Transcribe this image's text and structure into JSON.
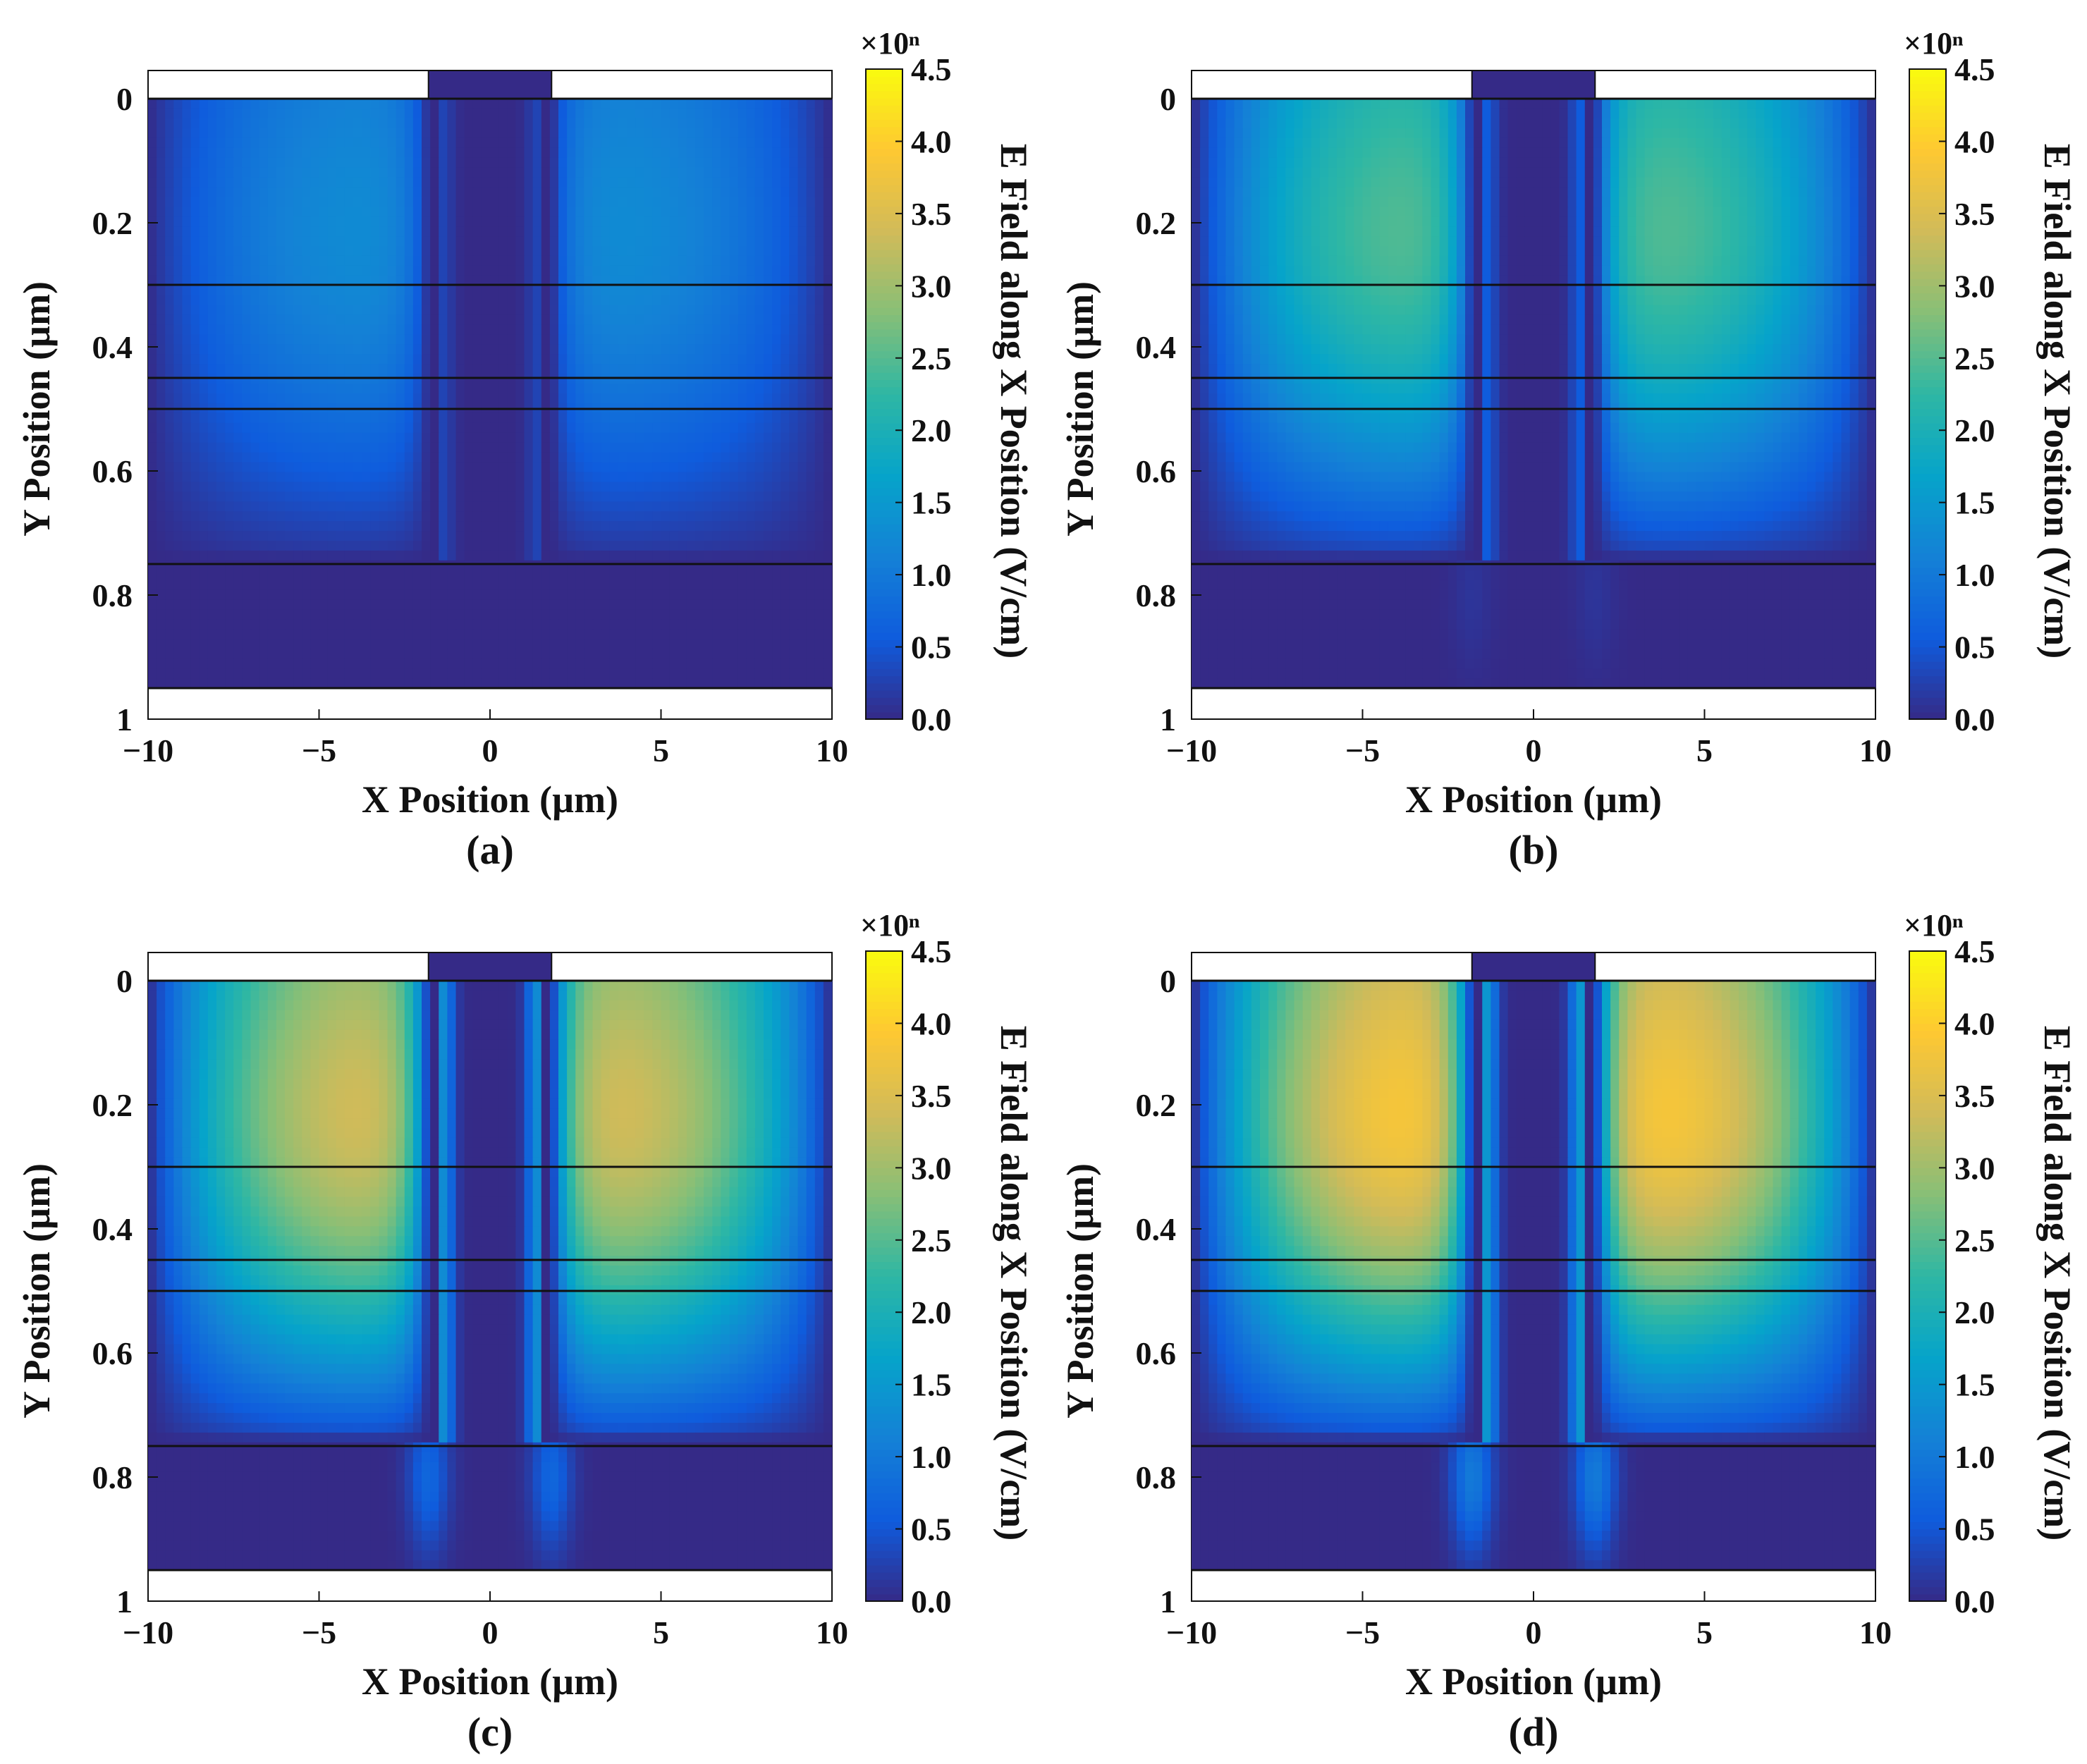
{
  "colors": {
    "colormap": [
      "#352a87",
      "#0f5cdd",
      "#1481d6",
      "#06a4ca",
      "#2eb7a4",
      "#87bf77",
      "#d1bb59",
      "#fec832",
      "#f9fb0e"
    ],
    "layer_line": "#111111",
    "empty_region": "#ffffff"
  },
  "chart_data": [
    {
      "panel_label": "(a)",
      "type": "heatmap",
      "xlabel": "X Position (µm)",
      "ylabel": "Y Position (µm)",
      "colorbar_label": "E Field along X Position (V/cm)",
      "colorbar_exponent": "×10ⁿ",
      "xlim": [
        -10,
        10
      ],
      "ylim": [
        1,
        0
      ],
      "xticks": [
        "−10",
        "−5",
        "0",
        "5",
        "10"
      ],
      "yticks": [
        "0",
        "0.2",
        "0.4",
        "0.6",
        "0.8",
        "1"
      ],
      "colorbar_range": [
        0.0,
        4.5
      ],
      "colorbar_ticks": [
        "0.0",
        "0.5",
        "1.0",
        "1.5",
        "2.0",
        "2.5",
        "3.0",
        "3.5",
        "4.0",
        "4.5"
      ],
      "layer_boundaries_y": [
        0.0,
        0.3,
        0.45,
        0.5,
        0.75,
        0.95
      ],
      "field_peak_left": 1.4,
      "field_peak_right": 1.4,
      "trench_x": [
        -1.8,
        1.8
      ]
    },
    {
      "panel_label": "(b)",
      "type": "heatmap",
      "xlabel": "X Position (µm)",
      "ylabel": "Y Position (µm)",
      "colorbar_label": "E Field along X Position (V/cm)",
      "colorbar_exponent": "×10ⁿ",
      "xlim": [
        -10,
        10
      ],
      "ylim": [
        1,
        0
      ],
      "xticks": [
        "−10",
        "−5",
        "0",
        "5",
        "10"
      ],
      "yticks": [
        "0",
        "0.2",
        "0.4",
        "0.6",
        "0.8",
        "1"
      ],
      "colorbar_range": [
        0.0,
        4.5
      ],
      "colorbar_ticks": [
        "0.0",
        "0.5",
        "1.0",
        "1.5",
        "2.0",
        "2.5",
        "3.0",
        "3.5",
        "4.0",
        "4.5"
      ],
      "layer_boundaries_y": [
        0.0,
        0.3,
        0.45,
        0.5,
        0.75,
        0.95
      ],
      "field_peak_left": 2.7,
      "field_peak_right": 2.7,
      "trench_x": [
        -1.8,
        1.8
      ]
    },
    {
      "panel_label": "(c)",
      "type": "heatmap",
      "xlabel": "X Position (µm)",
      "ylabel": "Y Position (µm)",
      "colorbar_label": "E Field along X Position (V/cm)",
      "colorbar_exponent": "×10ⁿ",
      "xlim": [
        -10,
        10
      ],
      "ylim": [
        1,
        0
      ],
      "xticks": [
        "−10",
        "−5",
        "0",
        "5",
        "10"
      ],
      "yticks": [
        "0",
        "0.2",
        "0.4",
        "0.6",
        "0.8",
        "1"
      ],
      "colorbar_range": [
        0.0,
        4.5
      ],
      "colorbar_ticks": [
        "0.0",
        "0.5",
        "1.0",
        "1.5",
        "2.0",
        "2.5",
        "3.0",
        "3.5",
        "4.0",
        "4.5"
      ],
      "layer_boundaries_y": [
        0.0,
        0.3,
        0.45,
        0.5,
        0.75,
        0.95
      ],
      "field_peak_left": 3.7,
      "field_peak_right": 3.7,
      "trench_x": [
        -1.8,
        1.8
      ]
    },
    {
      "panel_label": "(d)",
      "type": "heatmap",
      "xlabel": "X Position (µm)",
      "ylabel": "Y Position (µm)",
      "colorbar_label": "E Field along X Position (V/cm)",
      "colorbar_exponent": "×10ⁿ",
      "xlim": [
        -10,
        10
      ],
      "ylim": [
        1,
        0
      ],
      "xticks": [
        "−10",
        "−5",
        "0",
        "5",
        "10"
      ],
      "yticks": [
        "0",
        "0.2",
        "0.4",
        "0.6",
        "0.8",
        "1"
      ],
      "colorbar_range": [
        0.0,
        4.5
      ],
      "colorbar_ticks": [
        "0.0",
        "0.5",
        "1.0",
        "1.5",
        "2.0",
        "2.5",
        "3.0",
        "3.5",
        "4.0",
        "4.5"
      ],
      "layer_boundaries_y": [
        0.0,
        0.3,
        0.45,
        0.5,
        0.75,
        0.95
      ],
      "field_peak_left": 4.2,
      "field_peak_right": 4.2,
      "trench_x": [
        -1.8,
        1.8
      ]
    }
  ]
}
